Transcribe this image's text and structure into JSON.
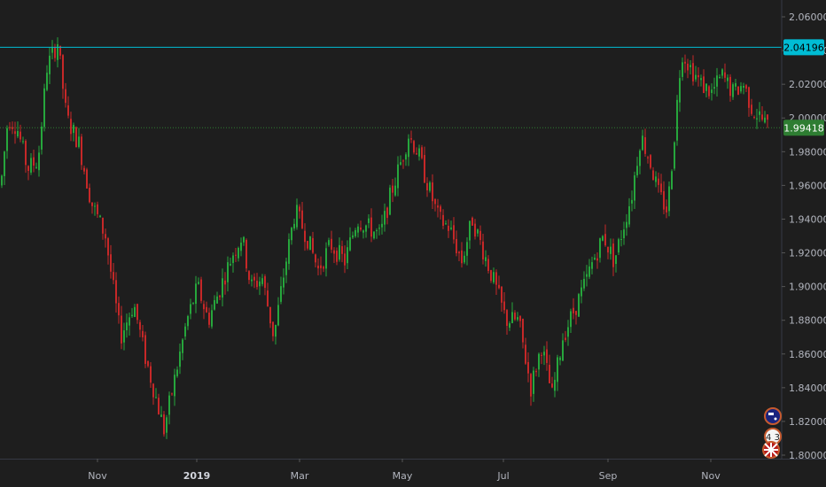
{
  "colors": {
    "background": "#1e1e1e",
    "up": "#26a63c",
    "down": "#c62828",
    "resistance": "#00bcd4",
    "current": "#2e7d32",
    "axis_text": "#b2b5be"
  },
  "chart_data": {
    "type": "candlestick",
    "title": "",
    "y_axis": {
      "ticks": [
        "2.06000",
        "2.04000",
        "2.02000",
        "2.00000",
        "1.98000",
        "1.96000",
        "1.94000",
        "1.92000",
        "1.90000",
        "1.88000",
        "1.86000",
        "1.84000",
        "1.82000",
        "1.80000"
      ],
      "range": [
        1.798,
        2.066
      ]
    },
    "x_axis": {
      "labels": [
        {
          "label": "Nov",
          "bold": false
        },
        {
          "label": "2019",
          "bold": true
        },
        {
          "label": "Mar",
          "bold": false
        },
        {
          "label": "May",
          "bold": false
        },
        {
          "label": "Jul",
          "bold": false
        },
        {
          "label": "Sep",
          "bold": false
        },
        {
          "label": "Nov",
          "bold": false
        }
      ]
    },
    "horizontal_lines": [
      {
        "value": 2.04196,
        "label": "2.04196",
        "style": "solid",
        "color": "#00bcd4"
      },
      {
        "value": 1.99418,
        "label": "1.99418",
        "style": "dotted",
        "color": "#2e7d32"
      }
    ],
    "price_path": [
      [
        0,
        1.96
      ],
      [
        8,
        2.0
      ],
      [
        18,
        1.995
      ],
      [
        30,
        1.97
      ],
      [
        42,
        1.975
      ],
      [
        52,
        2.03
      ],
      [
        64,
        2.045
      ],
      [
        74,
        2.0
      ],
      [
        88,
        1.985
      ],
      [
        102,
        1.95
      ],
      [
        118,
        1.93
      ],
      [
        135,
        1.87
      ],
      [
        150,
        1.89
      ],
      [
        162,
        1.86
      ],
      [
        172,
        1.84
      ],
      [
        184,
        1.815
      ],
      [
        198,
        1.85
      ],
      [
        210,
        1.88
      ],
      [
        222,
        1.9
      ],
      [
        234,
        1.88
      ],
      [
        248,
        1.9
      ],
      [
        262,
        1.92
      ],
      [
        272,
        1.93
      ],
      [
        282,
        1.9
      ],
      [
        295,
        1.905
      ],
      [
        308,
        1.87
      ],
      [
        320,
        1.91
      ],
      [
        332,
        1.945
      ],
      [
        345,
        1.93
      ],
      [
        358,
        1.91
      ],
      [
        372,
        1.925
      ],
      [
        388,
        1.915
      ],
      [
        402,
        1.94
      ],
      [
        415,
        1.935
      ],
      [
        428,
        1.93
      ],
      [
        440,
        1.955
      ],
      [
        452,
        1.975
      ],
      [
        460,
        1.99
      ],
      [
        470,
        1.98
      ],
      [
        482,
        1.96
      ],
      [
        494,
        1.94
      ],
      [
        506,
        1.935
      ],
      [
        520,
        1.915
      ],
      [
        532,
        1.94
      ],
      [
        545,
        1.92
      ],
      [
        558,
        1.9
      ],
      [
        570,
        1.88
      ],
      [
        584,
        1.88
      ],
      [
        598,
        1.84
      ],
      [
        610,
        1.865
      ],
      [
        622,
        1.835
      ],
      [
        634,
        1.87
      ],
      [
        646,
        1.885
      ],
      [
        658,
        1.9
      ],
      [
        668,
        1.915
      ],
      [
        680,
        1.93
      ],
      [
        692,
        1.915
      ],
      [
        702,
        1.935
      ],
      [
        712,
        1.955
      ],
      [
        722,
        1.99
      ],
      [
        732,
        1.975
      ],
      [
        742,
        1.955
      ],
      [
        752,
        1.945
      ],
      [
        760,
        1.99
      ],
      [
        768,
        2.04
      ],
      [
        778,
        2.03
      ],
      [
        790,
        2.02
      ],
      [
        802,
        2.015
      ],
      [
        814,
        2.025
      ],
      [
        826,
        2.015
      ],
      [
        838,
        2.02
      ],
      [
        848,
        2.005
      ],
      [
        858,
        2.0
      ],
      [
        866,
        1.994
      ]
    ]
  },
  "badges": [
    {
      "name": "event-flag-icon",
      "kind": "flag"
    },
    {
      "name": "event-count-badge",
      "count": "4 3",
      "kind": "count"
    },
    {
      "name": "uk-flag-icon",
      "kind": "uk-flag"
    }
  ]
}
